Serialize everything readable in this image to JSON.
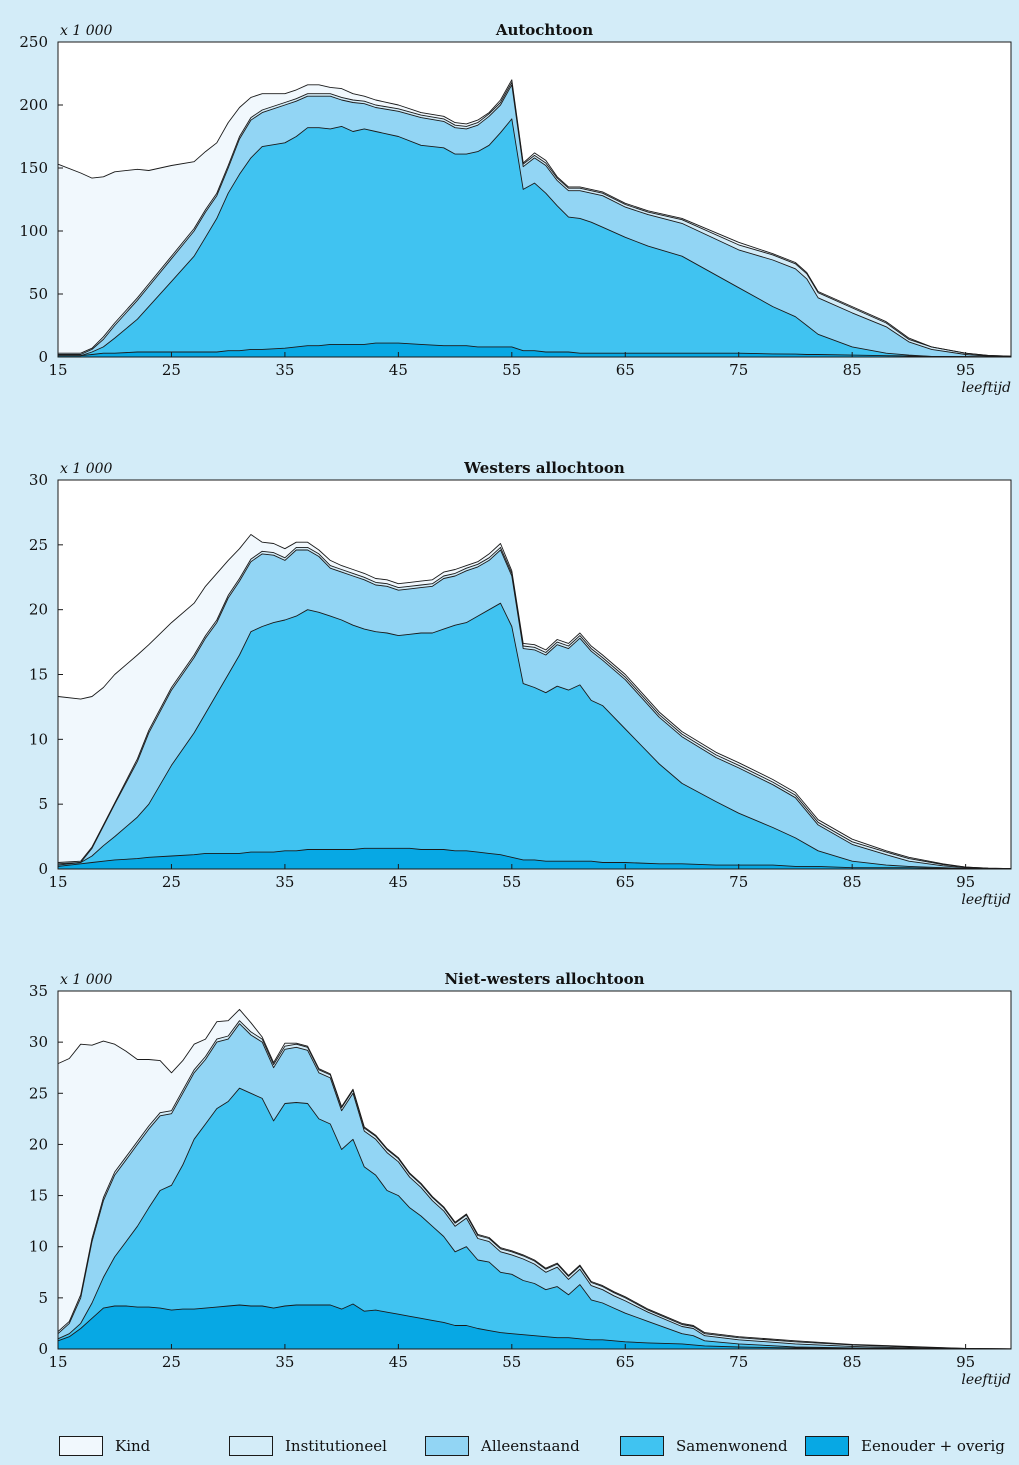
{
  "chart_data": [
    {
      "type": "area",
      "stacked": true,
      "title": "Autochtoon",
      "unit_label": "x 1 000",
      "xlabel": "leeftijd",
      "xlim": [
        15,
        99
      ],
      "ylim": [
        0,
        250
      ],
      "yticks": [
        0,
        50,
        100,
        150,
        200,
        250
      ],
      "xticks": [
        15,
        25,
        35,
        45,
        55,
        65,
        75,
        85,
        95
      ],
      "x": [
        15,
        17,
        18,
        19,
        20,
        22,
        23,
        25,
        27,
        28,
        29,
        30,
        31,
        32,
        33,
        35,
        36,
        37,
        38,
        39,
        40,
        41,
        42,
        43,
        45,
        47,
        49,
        50,
        51,
        52,
        53,
        54,
        55,
        56,
        57,
        58,
        59,
        60,
        61,
        62,
        63,
        65,
        67,
        70,
        75,
        78,
        80,
        81,
        82,
        85,
        88,
        90,
        92,
        95,
        97,
        99
      ],
      "cumulative": {
        "Eenouder + overig": [
          1,
          1,
          2,
          3,
          3,
          4,
          4,
          4,
          4,
          4,
          4,
          5,
          5,
          6,
          6,
          7,
          8,
          9,
          9,
          10,
          10,
          10,
          10,
          11,
          11,
          10,
          9,
          9,
          9,
          8,
          8,
          8,
          8,
          5,
          5,
          4,
          4,
          4,
          3,
          3,
          3,
          3,
          3,
          3,
          3,
          2.5,
          2.3,
          2,
          2,
          1.5,
          1,
          0.8,
          0.5,
          0.3,
          0.2,
          0.1
        ],
        "Samenwonend": [
          1,
          1,
          4,
          8,
          15,
          30,
          40,
          60,
          80,
          95,
          110,
          130,
          145,
          158,
          167,
          170,
          175,
          182,
          182,
          181,
          183,
          179,
          181,
          179,
          175,
          168,
          166,
          161,
          161,
          163,
          168,
          178,
          189,
          133,
          138,
          130,
          120,
          111,
          110,
          107,
          103,
          95,
          88,
          80,
          55,
          40,
          32,
          25,
          18,
          8,
          3,
          1.5,
          0.5,
          0.2,
          0.1,
          0.1
        ],
        "Alleenstaand": [
          2,
          2,
          6,
          14,
          25,
          45,
          56,
          78,
          100,
          115,
          128,
          150,
          173,
          188,
          194,
          200,
          203,
          207,
          207,
          207,
          204,
          202,
          201,
          198,
          195,
          190,
          187,
          182,
          181,
          184,
          191,
          200,
          216,
          151,
          158,
          152,
          140,
          132,
          132,
          130,
          128,
          119,
          113,
          106,
          85,
          77,
          70,
          62,
          47,
          35,
          24,
          12,
          6,
          2,
          0.6,
          0.2
        ],
        "Institutioneel": [
          3,
          3,
          7,
          16,
          27,
          47,
          58,
          80,
          102,
          117,
          130,
          152,
          175,
          190,
          196,
          202,
          205,
          209,
          209,
          209,
          206,
          204,
          203,
          200,
          197,
          192,
          189,
          184,
          183,
          186,
          193,
          202,
          218,
          153,
          160,
          154,
          142,
          134,
          134,
          132,
          130,
          121,
          115,
          109,
          89,
          81,
          74,
          66,
          51,
          39,
          27,
          14,
          8,
          3,
          1.2,
          0.6
        ],
        "Kind": [
          153,
          146,
          142,
          143,
          147,
          149,
          148,
          152,
          155,
          163,
          170,
          186,
          198,
          206,
          209,
          209,
          212,
          216,
          216,
          214,
          213,
          209,
          207,
          204,
          200,
          194,
          191,
          186,
          185,
          188,
          194,
          204,
          220,
          154,
          162,
          156,
          143,
          135,
          135,
          133,
          131,
          122,
          116,
          110,
          91,
          82,
          75,
          67,
          52,
          40,
          28,
          15,
          8,
          3,
          1.2,
          0.6
        ]
      }
    },
    {
      "type": "area",
      "stacked": true,
      "title": "Westers allochtoon",
      "unit_label": "x 1 000",
      "xlabel": "leeftijd",
      "xlim": [
        15,
        99
      ],
      "ylim": [
        0,
        30
      ],
      "yticks": [
        0,
        5,
        10,
        15,
        20,
        25,
        30
      ],
      "xticks": [
        15,
        25,
        35,
        45,
        55,
        65,
        75,
        85,
        95
      ],
      "x": [
        15,
        17,
        18,
        19,
        20,
        22,
        23,
        25,
        27,
        28,
        29,
        30,
        31,
        32,
        33,
        34,
        35,
        36,
        37,
        38,
        39,
        40,
        41,
        42,
        43,
        44,
        45,
        46,
        47,
        48,
        49,
        50,
        51,
        52,
        53,
        54,
        55,
        56,
        57,
        58,
        59,
        60,
        61,
        62,
        63,
        65,
        68,
        70,
        73,
        75,
        78,
        80,
        82,
        85,
        88,
        90,
        93,
        95,
        97,
        99
      ],
      "cumulative": {
        "Eenouder + overig": [
          0.2,
          0.4,
          0.5,
          0.6,
          0.7,
          0.8,
          0.9,
          1.0,
          1.1,
          1.2,
          1.2,
          1.2,
          1.2,
          1.3,
          1.3,
          1.3,
          1.4,
          1.4,
          1.5,
          1.5,
          1.5,
          1.5,
          1.5,
          1.6,
          1.6,
          1.6,
          1.6,
          1.6,
          1.5,
          1.5,
          1.5,
          1.4,
          1.4,
          1.3,
          1.2,
          1.1,
          0.9,
          0.7,
          0.7,
          0.6,
          0.6,
          0.6,
          0.6,
          0.6,
          0.5,
          0.5,
          0.4,
          0.4,
          0.3,
          0.3,
          0.3,
          0.2,
          0.2,
          0.1,
          0.1,
          0.1,
          0.05,
          0.05,
          0.02,
          0.01
        ],
        "Samenwonend": [
          0.3,
          0.5,
          1.0,
          1.8,
          2.5,
          4.0,
          5.0,
          8.0,
          10.5,
          12.0,
          13.5,
          15.0,
          16.5,
          18.3,
          18.7,
          19.0,
          19.2,
          19.5,
          20.0,
          19.8,
          19.5,
          19.2,
          18.8,
          18.5,
          18.3,
          18.2,
          18.0,
          18.1,
          18.2,
          18.2,
          18.5,
          18.8,
          19.0,
          19.5,
          20.0,
          20.5,
          18.7,
          14.3,
          14.0,
          13.6,
          14.1,
          13.8,
          14.2,
          13.0,
          12.6,
          10.8,
          8.1,
          6.6,
          5.2,
          4.3,
          3.2,
          2.4,
          1.4,
          0.6,
          0.3,
          0.2,
          0.1,
          0.05,
          0.02,
          0.01
        ],
        "Alleenstaand": [
          0.4,
          0.5,
          1.6,
          3.3,
          5.0,
          8.3,
          10.5,
          13.8,
          16.3,
          17.8,
          19.0,
          20.9,
          22.2,
          23.7,
          24.3,
          24.2,
          23.8,
          24.6,
          24.6,
          24.1,
          23.2,
          22.9,
          22.6,
          22.3,
          21.9,
          21.8,
          21.5,
          21.6,
          21.7,
          21.8,
          22.4,
          22.6,
          23.0,
          23.3,
          23.8,
          24.6,
          22.6,
          17.0,
          16.9,
          16.5,
          17.3,
          17.0,
          17.8,
          16.8,
          16.1,
          14.6,
          11.7,
          10.2,
          8.6,
          7.8,
          6.5,
          5.5,
          3.4,
          1.9,
          1.1,
          0.6,
          0.25,
          0.1,
          0.05,
          0.02
        ],
        "Institutioneel": [
          0.5,
          0.6,
          1.7,
          3.4,
          5.1,
          8.5,
          10.7,
          14.0,
          16.5,
          18.0,
          19.2,
          21.1,
          22.4,
          23.9,
          24.5,
          24.4,
          24.0,
          24.8,
          24.8,
          24.3,
          23.4,
          23.1,
          22.8,
          22.5,
          22.1,
          22.0,
          21.7,
          21.8,
          21.9,
          22.0,
          22.6,
          22.8,
          23.2,
          23.5,
          24.0,
          24.8,
          22.8,
          17.2,
          17.1,
          16.7,
          17.5,
          17.2,
          18.0,
          17.0,
          16.3,
          14.8,
          11.9,
          10.4,
          8.8,
          8.0,
          6.7,
          5.7,
          3.6,
          2.1,
          1.3,
          0.8,
          0.35,
          0.15,
          0.06,
          0.03
        ],
        "Kind": [
          13.3,
          13.1,
          13.3,
          14.0,
          15.0,
          16.5,
          17.3,
          19.0,
          20.5,
          21.8,
          22.8,
          23.8,
          24.7,
          25.8,
          25.2,
          25.1,
          24.7,
          25.2,
          25.2,
          24.6,
          23.8,
          23.4,
          23.1,
          22.8,
          22.4,
          22.3,
          22.0,
          22.1,
          22.2,
          22.3,
          22.9,
          23.1,
          23.4,
          23.7,
          24.3,
          25.1,
          23.0,
          17.4,
          17.3,
          16.9,
          17.7,
          17.4,
          18.2,
          17.2,
          16.5,
          15.0,
          12.1,
          10.6,
          9.0,
          8.2,
          6.9,
          5.9,
          3.8,
          2.3,
          1.4,
          0.9,
          0.4,
          0.15,
          0.06,
          0.03
        ]
      }
    },
    {
      "type": "area",
      "stacked": true,
      "title": "Niet-westers allochtoon",
      "unit_label": "x 1 000",
      "xlabel": "leeftijd",
      "xlim": [
        15,
        99
      ],
      "ylim": [
        0,
        35
      ],
      "yticks": [
        0,
        5,
        10,
        15,
        20,
        25,
        30,
        35
      ],
      "xticks": [
        15,
        25,
        35,
        45,
        55,
        65,
        75,
        85,
        95
      ],
      "x": [
        15,
        16,
        17,
        18,
        19,
        20,
        21,
        22,
        23,
        24,
        25,
        26,
        27,
        28,
        29,
        30,
        31,
        32,
        33,
        34,
        35,
        36,
        37,
        38,
        39,
        40,
        41,
        42,
        43,
        44,
        45,
        46,
        47,
        48,
        49,
        50,
        51,
        52,
        53,
        54,
        55,
        56,
        57,
        58,
        59,
        60,
        61,
        62,
        63,
        64,
        65,
        67,
        70,
        71,
        72,
        75,
        80,
        85,
        90,
        95,
        99
      ],
      "cumulative": {
        "Eenouder + overig": [
          0.8,
          1.2,
          2.0,
          3.0,
          4.0,
          4.2,
          4.2,
          4.1,
          4.1,
          4.0,
          3.8,
          3.9,
          3.9,
          4.0,
          4.1,
          4.2,
          4.3,
          4.2,
          4.2,
          4.0,
          4.2,
          4.3,
          4.3,
          4.3,
          4.3,
          3.9,
          4.4,
          3.7,
          3.8,
          3.6,
          3.4,
          3.2,
          3.0,
          2.8,
          2.6,
          2.3,
          2.3,
          2.0,
          1.8,
          1.6,
          1.5,
          1.4,
          1.3,
          1.2,
          1.1,
          1.1,
          1.0,
          0.9,
          0.9,
          0.8,
          0.7,
          0.6,
          0.5,
          0.4,
          0.3,
          0.2,
          0.1,
          0.05,
          0.02,
          0.01,
          0.0
        ],
        "Samenwonend": [
          1.0,
          1.5,
          2.5,
          4.5,
          7.0,
          9.0,
          10.5,
          12.0,
          13.8,
          15.5,
          16.0,
          18.0,
          20.5,
          22.0,
          23.5,
          24.2,
          25.5,
          25.0,
          24.5,
          22.3,
          24.0,
          24.1,
          24.0,
          22.5,
          22.0,
          19.5,
          20.5,
          17.8,
          17.0,
          15.5,
          15.0,
          13.8,
          13.0,
          12.0,
          11.0,
          9.5,
          10.0,
          8.7,
          8.5,
          7.5,
          7.3,
          6.7,
          6.4,
          5.8,
          6.1,
          5.3,
          6.3,
          4.8,
          4.5,
          4.0,
          3.5,
          2.7,
          1.5,
          1.3,
          0.8,
          0.5,
          0.2,
          0.1,
          0.05,
          0.02,
          0.01
        ],
        "Alleenstaand": [
          1.5,
          2.5,
          5.0,
          10.5,
          14.5,
          17.0,
          18.5,
          20.0,
          21.5,
          22.8,
          23.0,
          25.0,
          27.0,
          28.3,
          30.0,
          30.3,
          31.8,
          30.7,
          30.0,
          27.5,
          29.3,
          29.5,
          29.2,
          27.0,
          26.5,
          23.3,
          25.0,
          21.3,
          20.5,
          19.2,
          18.3,
          16.8,
          15.8,
          14.5,
          13.5,
          12.0,
          12.8,
          10.8,
          10.5,
          9.5,
          9.2,
          8.8,
          8.3,
          7.5,
          8.0,
          6.8,
          7.8,
          6.2,
          5.8,
          5.2,
          4.7,
          3.6,
          2.2,
          2.0,
          1.3,
          0.9,
          0.5,
          0.25,
          0.1,
          0.03,
          0.01
        ],
        "Institutioneel": [
          1.7,
          2.7,
          5.3,
          10.8,
          14.8,
          17.3,
          18.8,
          20.3,
          21.8,
          23.1,
          23.3,
          25.3,
          27.3,
          28.6,
          30.3,
          30.6,
          32.1,
          31.0,
          30.3,
          27.8,
          29.6,
          29.8,
          29.5,
          27.3,
          26.8,
          23.6,
          25.3,
          21.6,
          20.8,
          19.5,
          18.6,
          17.1,
          16.1,
          14.8,
          13.8,
          12.3,
          13.1,
          11.1,
          10.8,
          9.8,
          9.5,
          9.1,
          8.6,
          7.8,
          8.3,
          7.1,
          8.1,
          6.5,
          6.1,
          5.5,
          5.0,
          3.8,
          2.4,
          2.2,
          1.5,
          1.1,
          0.7,
          0.4,
          0.2,
          0.05,
          0.02
        ],
        "Kind": [
          27.9,
          28.4,
          29.8,
          29.7,
          30.1,
          29.8,
          29.1,
          28.3,
          28.3,
          28.2,
          27.0,
          28.2,
          29.8,
          30.3,
          32.0,
          32.1,
          33.2,
          31.9,
          30.5,
          28.0,
          29.9,
          29.9,
          29.6,
          27.4,
          26.9,
          23.7,
          25.4,
          21.7,
          20.9,
          19.6,
          18.7,
          17.2,
          16.2,
          14.9,
          13.9,
          12.4,
          13.2,
          11.2,
          10.9,
          9.9,
          9.6,
          9.2,
          8.7,
          7.9,
          8.4,
          7.2,
          8.2,
          6.6,
          6.2,
          5.6,
          5.1,
          3.9,
          2.5,
          2.3,
          1.6,
          1.2,
          0.8,
          0.45,
          0.25,
          0.06,
          0.02
        ]
      }
    }
  ],
  "legend": [
    {
      "label": "Kind",
      "color": "#f1f8fd"
    },
    {
      "label": "Institutioneel",
      "color": "#d3ecf8"
    },
    {
      "label": "Alleenstaand",
      "color": "#92d5f4"
    },
    {
      "label": "Samenwonend",
      "color": "#40c3f1"
    },
    {
      "label": "Eenouder + overig",
      "color": "#07a8e4"
    }
  ],
  "series_order": [
    "Kind",
    "Institutioneel",
    "Alleenstaand",
    "Samenwonend",
    "Eenouder + overig"
  ]
}
